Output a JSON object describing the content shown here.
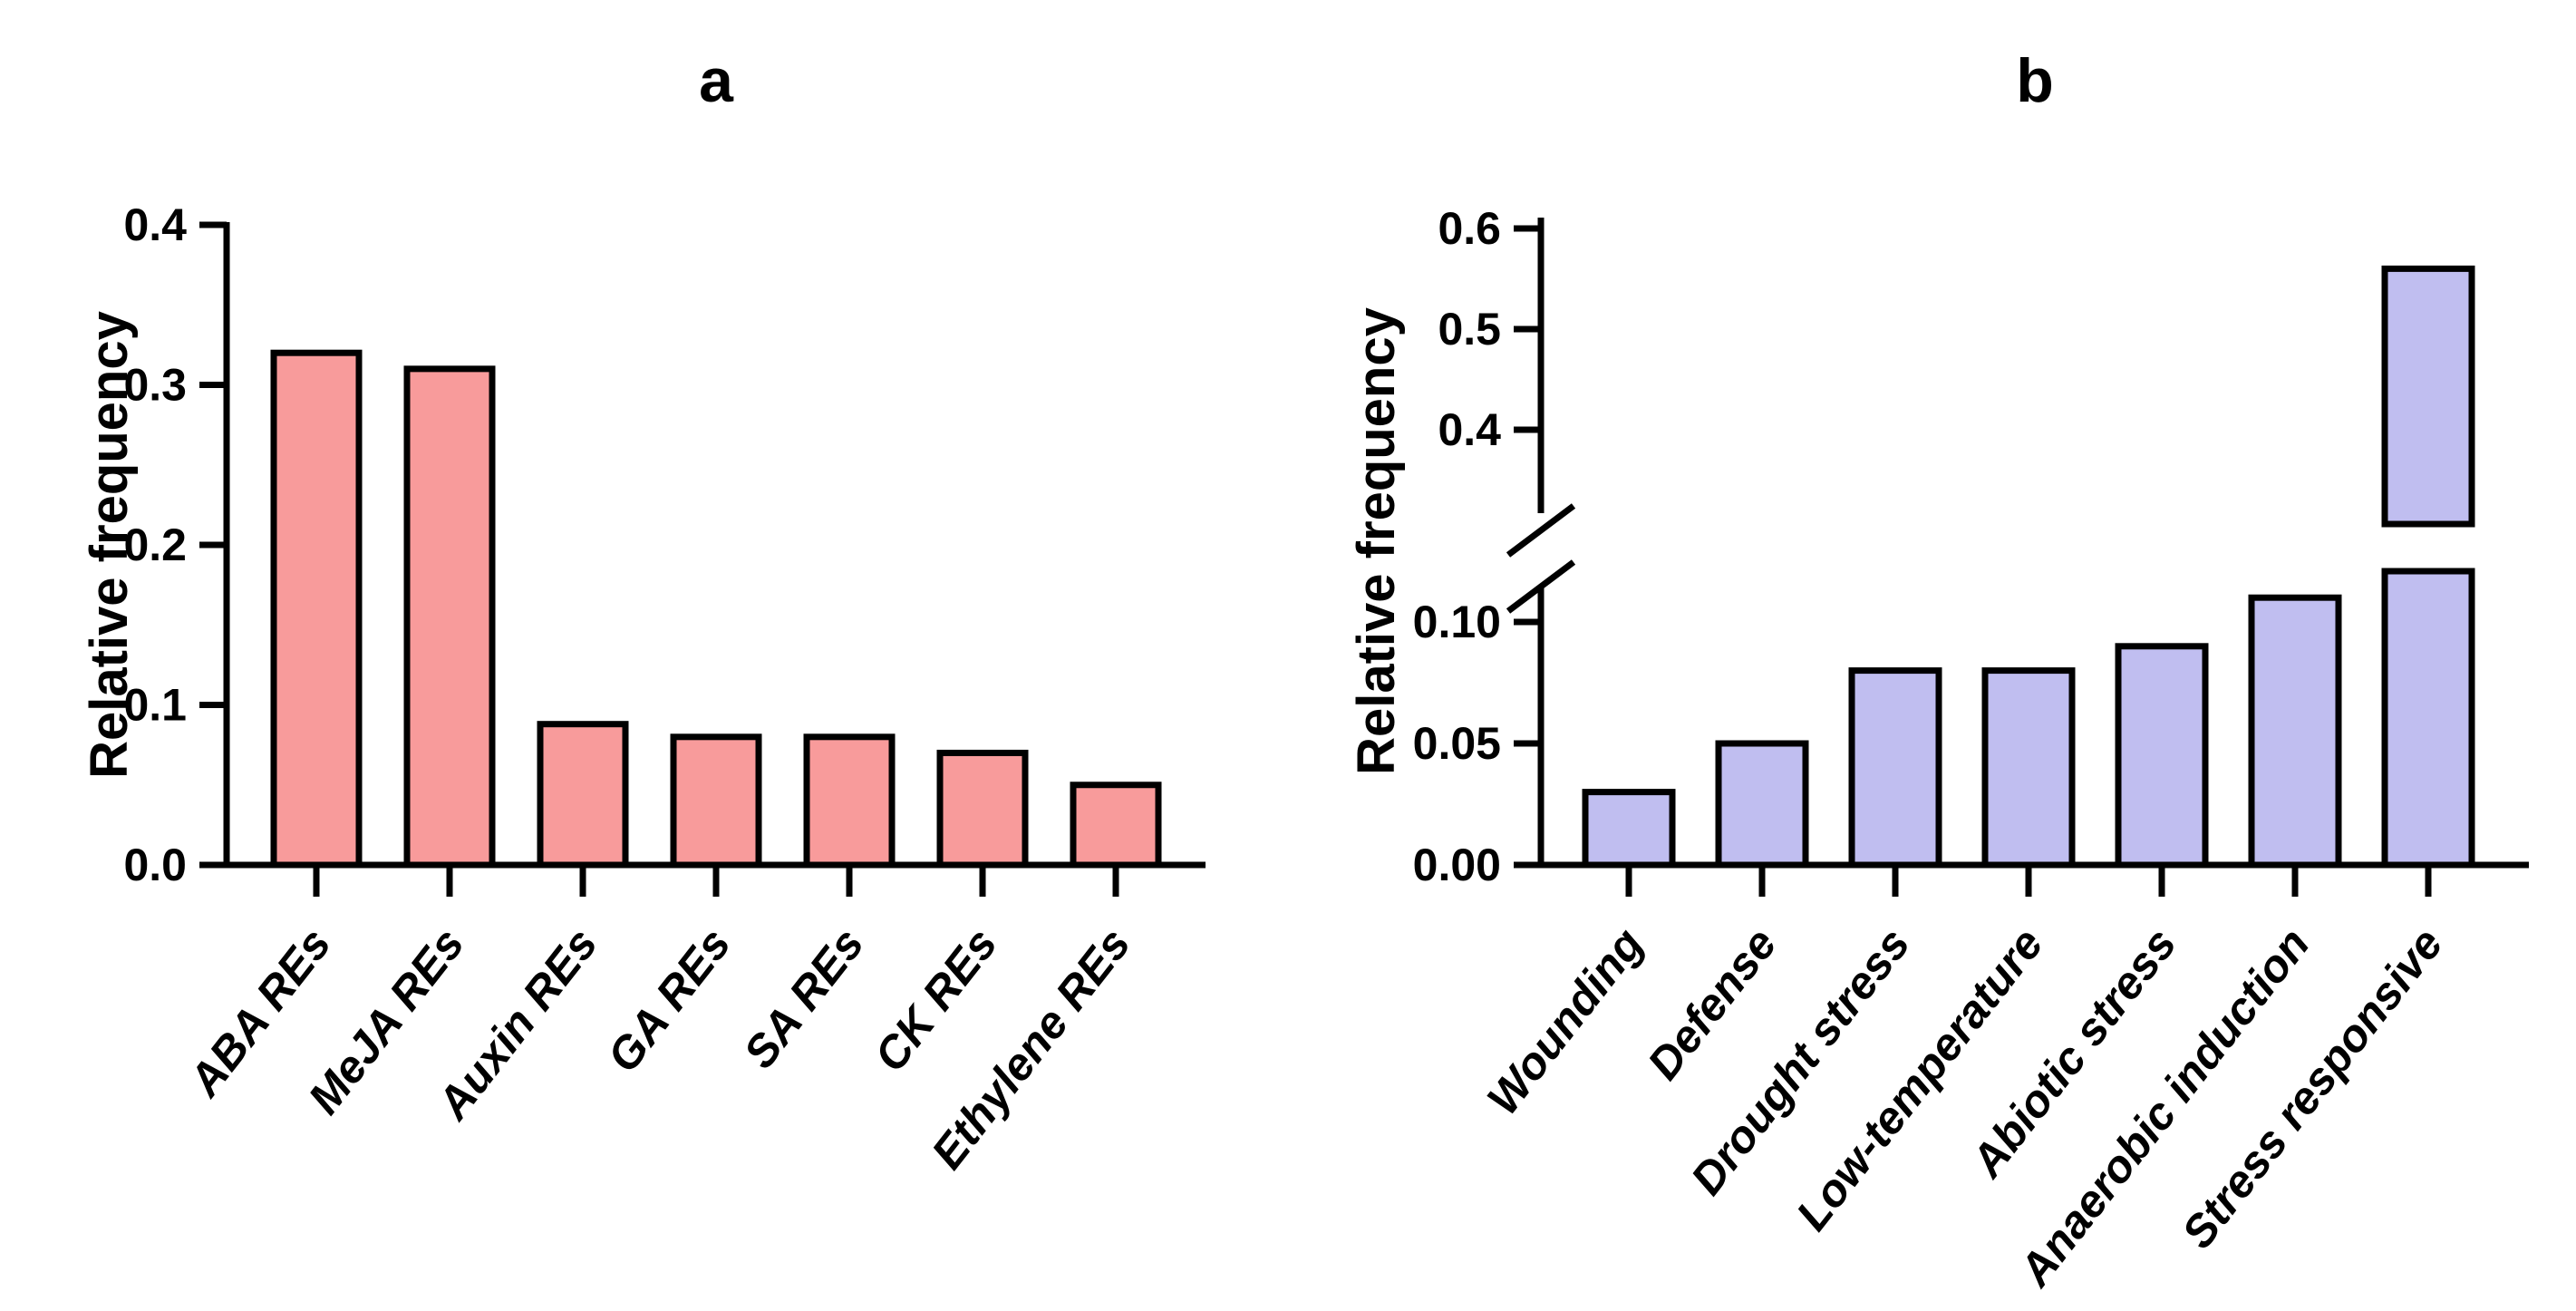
{
  "figure": {
    "background": "#ffffff",
    "axis_color": "#000000"
  },
  "chart_data": [
    {
      "id": "a",
      "type": "bar",
      "title": "a",
      "xlabel": "",
      "ylabel": "Relative frequency",
      "categories": [
        "ABA REs",
        "MeJA REs",
        "Auxin REs",
        "GA REs",
        "SA REs",
        "CK REs",
        "Ethylene REs"
      ],
      "values": [
        0.32,
        0.31,
        0.088,
        0.08,
        0.08,
        0.07,
        0.05
      ],
      "ylim": [
        0,
        0.4
      ],
      "yticks": [
        0.0,
        0.1,
        0.2,
        0.3,
        0.4
      ],
      "ytick_labels": [
        "0.0",
        "0.1",
        "0.2",
        "0.3",
        "0.4"
      ],
      "bar_fill": "#F89B9B",
      "bar_stroke": "#000000",
      "grid": false,
      "legend": "none"
    },
    {
      "id": "b",
      "type": "bar",
      "title": "b",
      "xlabel": "",
      "ylabel": "Relative frequency",
      "categories": [
        "Wounding",
        "Defense",
        "Drought stress",
        "Low-temperature",
        "Abiotic stress",
        "Anaerobic induction",
        "Stress responsive"
      ],
      "values": [
        0.03,
        0.05,
        0.08,
        0.08,
        0.09,
        0.11,
        0.56
      ],
      "axis_break": {
        "lower_ticks": [
          0.0,
          0.05,
          0.1
        ],
        "lower_tick_labels": [
          "0.00",
          "0.05",
          "0.10"
        ],
        "upper_ticks": [
          0.4,
          0.5,
          0.6
        ],
        "upper_tick_labels": [
          "0.4",
          "0.5",
          "0.6"
        ],
        "broken_bar_category": "Stress responsive"
      },
      "bar_fill": "#C0BEF0",
      "bar_stroke": "#000000",
      "grid": false,
      "legend": "none"
    }
  ]
}
